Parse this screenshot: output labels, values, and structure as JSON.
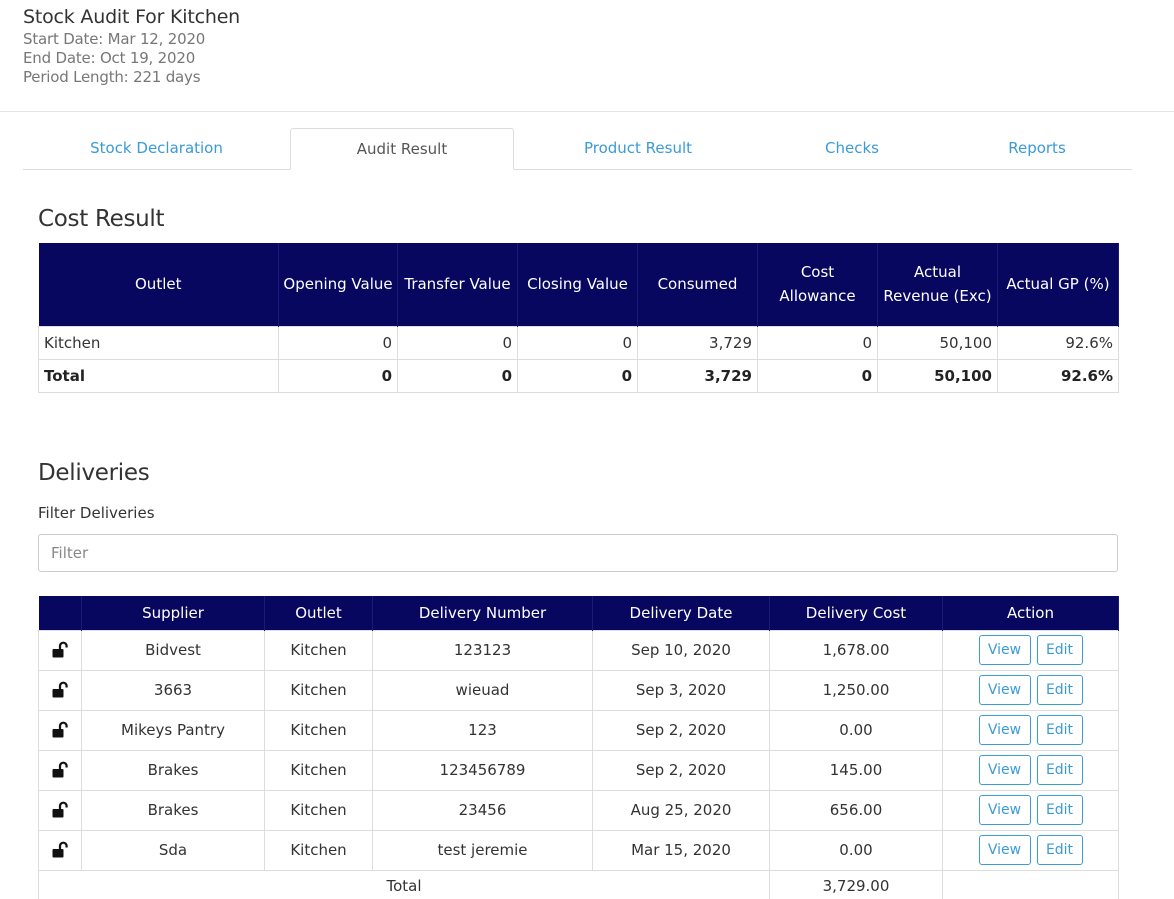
{
  "header": {
    "title": "Stock Audit For Kitchen",
    "start_date": "Start Date: Mar 12, 2020",
    "end_date": "End Date: Oct 19, 2020",
    "period_length": "Period Length: 221 days"
  },
  "tabs": [
    {
      "label": "Stock Declaration",
      "active": false
    },
    {
      "label": "Audit Result",
      "active": true
    },
    {
      "label": "Product Result",
      "active": false
    },
    {
      "label": "Checks",
      "active": false
    },
    {
      "label": "Reports",
      "active": false
    }
  ],
  "cost_result": {
    "heading": "Cost Result",
    "columns": [
      "Outlet",
      "Opening Value",
      "Transfer Value",
      "Closing Value",
      "Consumed",
      "Cost Allowance",
      "Actual Revenue (Exc)",
      "Actual GP (%)"
    ],
    "rows": [
      [
        "Kitchen",
        "0",
        "0",
        "0",
        "3,729",
        "0",
        "50,100",
        "92.6%"
      ]
    ],
    "total": [
      "Total",
      "0",
      "0",
      "0",
      "3,729",
      "0",
      "50,100",
      "92.6%"
    ]
  },
  "deliveries": {
    "heading": "Deliveries",
    "filter_label": "Filter Deliveries",
    "filter_placeholder": "Filter",
    "columns": [
      "",
      "Supplier",
      "Outlet",
      "Delivery Number",
      "Delivery Date",
      "Delivery Cost",
      "Action"
    ],
    "view_label": "View",
    "edit_label": "Edit",
    "rows": [
      {
        "supplier": "Bidvest",
        "outlet": "Kitchen",
        "number": "123123",
        "date": "Sep 10, 2020",
        "cost": "1,678.00"
      },
      {
        "supplier": "3663",
        "outlet": "Kitchen",
        "number": "wieuad",
        "date": "Sep 3, 2020",
        "cost": "1,250.00"
      },
      {
        "supplier": "Mikeys Pantry",
        "outlet": "Kitchen",
        "number": "123",
        "date": "Sep 2, 2020",
        "cost": "0.00"
      },
      {
        "supplier": "Brakes",
        "outlet": "Kitchen",
        "number": "123456789",
        "date": "Sep 2, 2020",
        "cost": "145.00"
      },
      {
        "supplier": "Brakes",
        "outlet": "Kitchen",
        "number": "23456",
        "date": "Aug 25, 2020",
        "cost": "656.00"
      },
      {
        "supplier": "Sda",
        "outlet": "Kitchen",
        "number": "test jeremie",
        "date": "Mar 15, 2020",
        "cost": "0.00"
      }
    ],
    "total_label": "Total",
    "total_cost": "3,729.00"
  },
  "colors": {
    "header_bg": "#070760",
    "link": "#3a9bd6"
  },
  "icons": {
    "row_status": "unlocked-padlock-icon"
  }
}
